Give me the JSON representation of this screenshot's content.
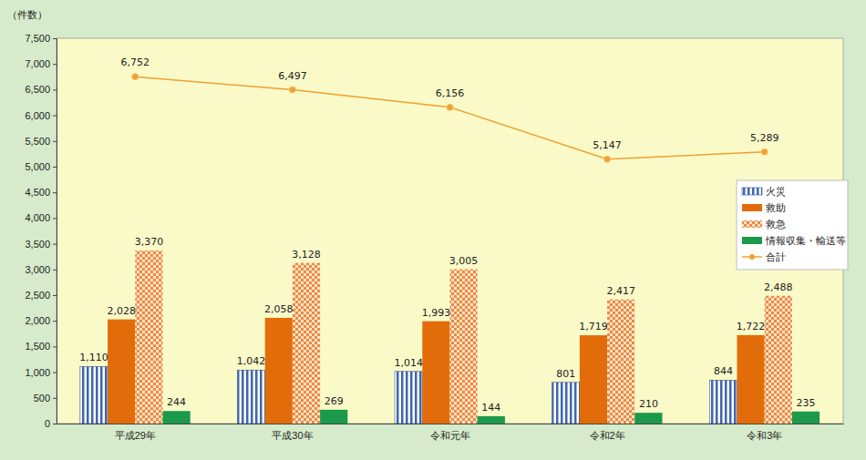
{
  "chart_data": {
    "type": "bar",
    "y_label": "（件数）",
    "categories": [
      "平成29年",
      "平成30年",
      "令和元年",
      "令和2年",
      "令和3年"
    ],
    "series": [
      {
        "name": "火災",
        "type": "bar",
        "color": "#3f66ad",
        "values": [
          1110,
          1042,
          1014,
          801,
          844
        ],
        "value_labels": [
          "1,110",
          "1,042",
          "1,014",
          "801",
          "844"
        ]
      },
      {
        "name": "救助",
        "type": "bar",
        "color": "#e36c0a",
        "values": [
          2028,
          2058,
          1993,
          1719,
          1722
        ],
        "value_labels": [
          "2,028",
          "2,058",
          "1,993",
          "1,719",
          "1,722"
        ]
      },
      {
        "name": "救急",
        "type": "bar",
        "color": "#ee8a3c",
        "values": [
          3370,
          3128,
          3005,
          2417,
          2488
        ],
        "value_labels": [
          "3,370",
          "3,128",
          "3,005",
          "2,417",
          "2,488"
        ]
      },
      {
        "name": "情報収集・輸送等",
        "type": "bar",
        "color": "#1a9a4a",
        "values": [
          244,
          269,
          144,
          210,
          235
        ],
        "value_labels": [
          "244",
          "269",
          "144",
          "210",
          "235"
        ]
      },
      {
        "name": "合計",
        "type": "line",
        "color": "#f0a030",
        "marker": "circle",
        "values": [
          6752,
          6497,
          6156,
          5147,
          5289
        ],
        "value_labels": [
          "6,752",
          "6,497",
          "6,156",
          "5,147",
          "5,289"
        ]
      }
    ],
    "ylim": [
      0,
      7500
    ],
    "yticks": [
      0,
      500,
      {
        "value": 1000,
        "label": "1,000"
      },
      {
        "value": 1500,
        "label": "1,500"
      },
      {
        "value": 2000,
        "label": "2,000"
      },
      {
        "value": 2500,
        "label": "2,500"
      },
      {
        "value": 3000,
        "label": "3,000"
      },
      {
        "value": 3500,
        "label": "3,500"
      },
      {
        "value": 4000,
        "label": "4,000"
      },
      {
        "value": 4500,
        "label": "4,500"
      },
      {
        "value": 5000,
        "label": "5,000"
      },
      {
        "value": 5500,
        "label": "5,500"
      },
      {
        "value": 6000,
        "label": "6,000"
      },
      {
        "value": 6500,
        "label": "6,500"
      },
      {
        "value": 7000,
        "label": "7,000"
      },
      {
        "value": 7500,
        "label": "7,500"
      }
    ],
    "grid": false,
    "legend": "right",
    "data_labels": true
  }
}
